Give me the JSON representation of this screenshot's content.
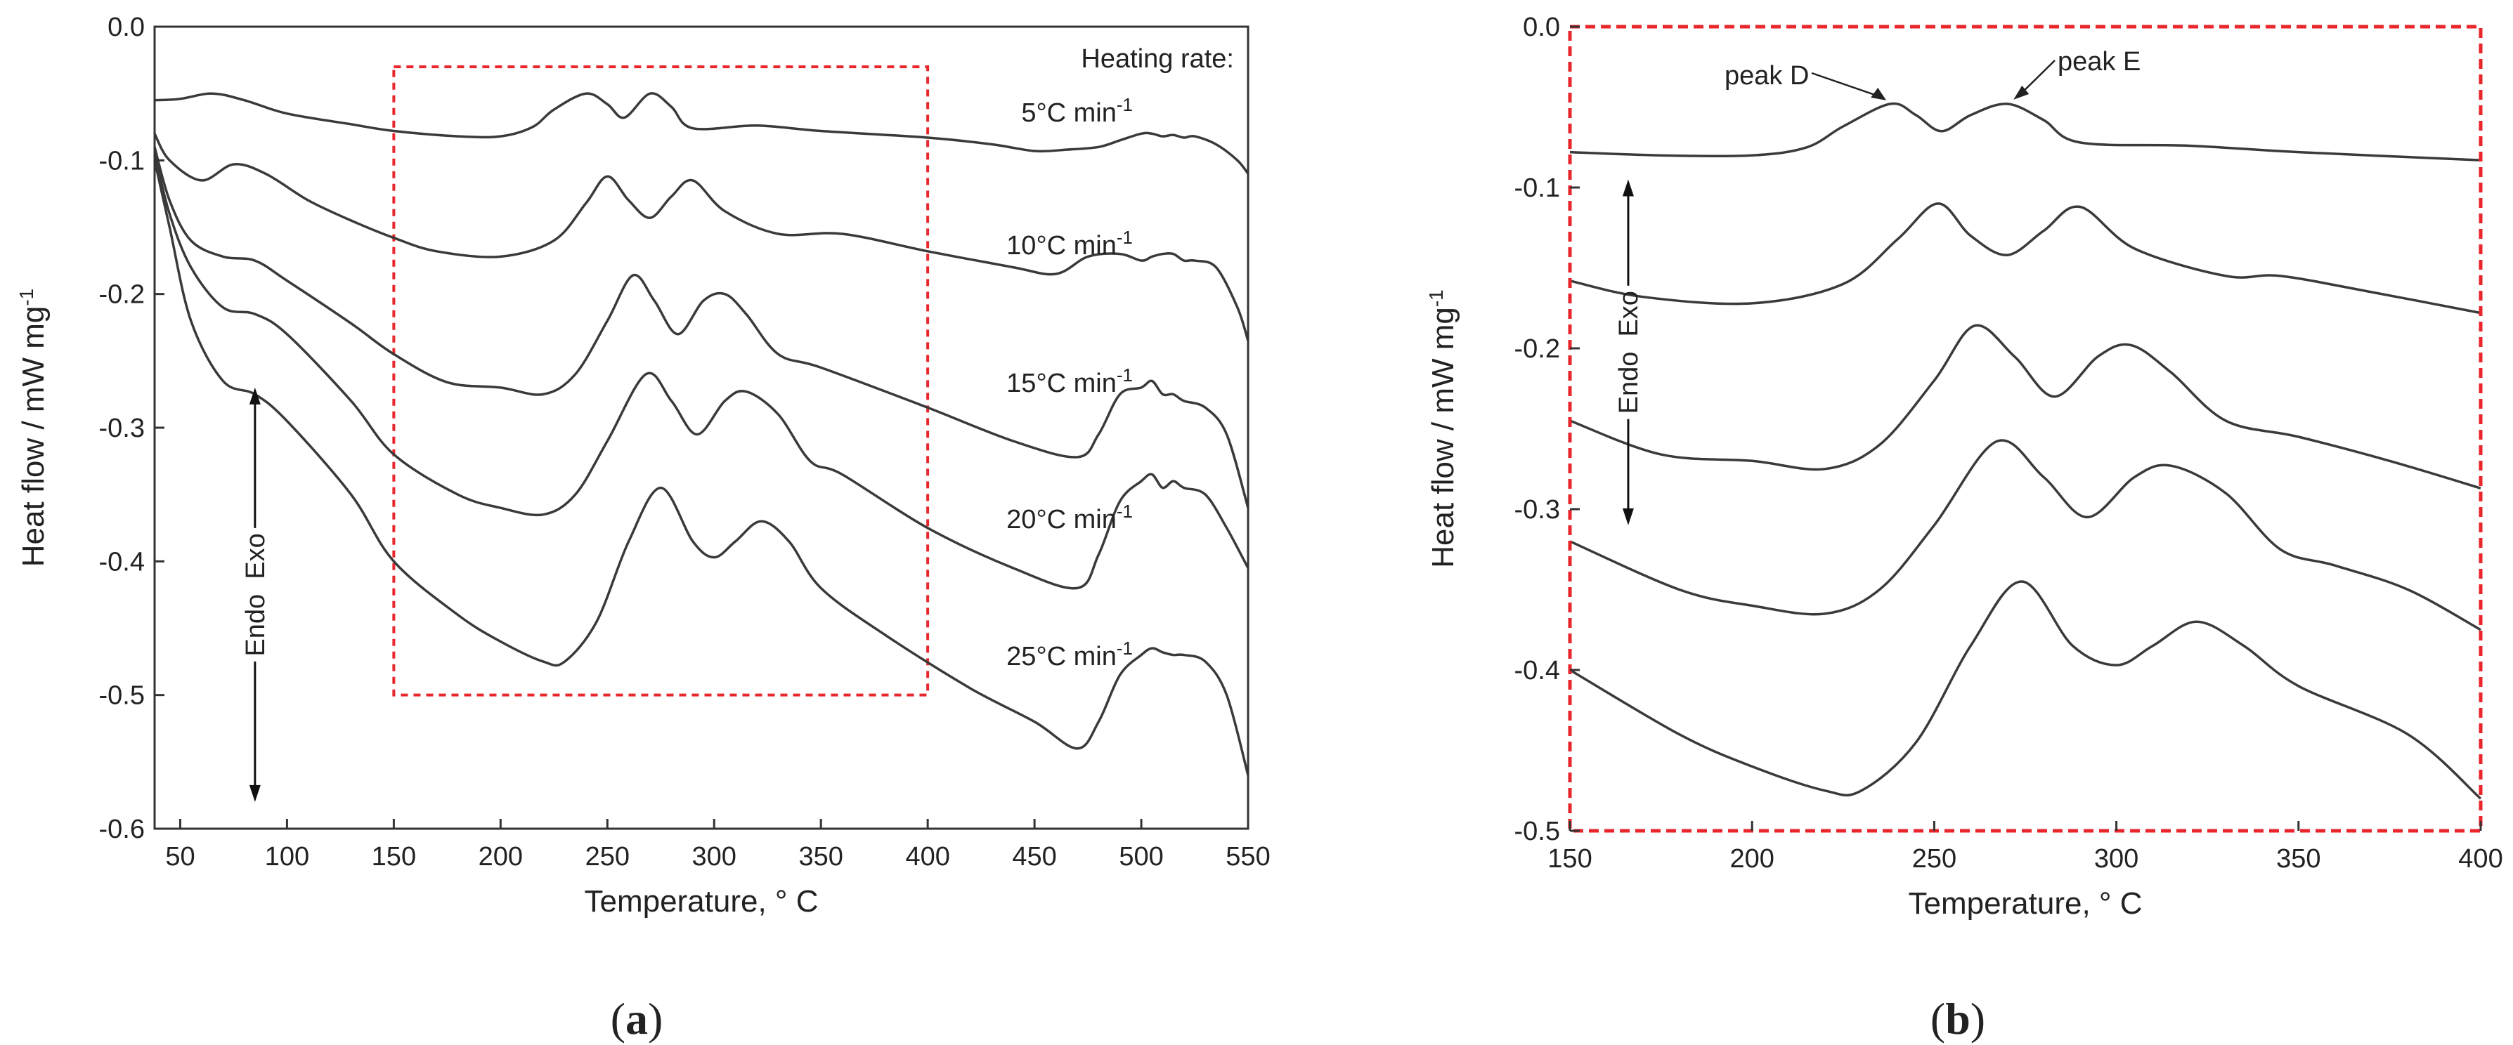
{
  "figure": {
    "caption_a": "(a)",
    "caption_a_parts": [
      "(",
      "a",
      ")"
    ],
    "caption_b": "(b)",
    "caption_b_parts": [
      "(",
      "b",
      ")"
    ]
  },
  "chart_data": [
    {
      "id": "a",
      "type": "line",
      "title": "",
      "xlabel": "Temperature, ° C",
      "ylabel": "Heat flow / mW mg-1",
      "xlim": [
        38,
        550
      ],
      "ylim": [
        -0.6,
        0.0
      ],
      "xticks": [
        50,
        100,
        150,
        200,
        250,
        300,
        350,
        400,
        450,
        500,
        550
      ],
      "yticks": [
        0.0,
        -0.1,
        -0.2,
        -0.3,
        -0.4,
        -0.5,
        -0.6
      ],
      "ytick_labels": [
        "0.0",
        "-0.1",
        "-0.2",
        "-0.3",
        "-0.4",
        "-0.5",
        "-0.6"
      ],
      "grid": false,
      "legend_title": "Heating rate:",
      "series": [
        {
          "name": "5°C min-1",
          "label_main": "5°C min",
          "label_sup": "-1",
          "x": [
            38,
            50,
            65,
            80,
            100,
            130,
            150,
            180,
            200,
            215,
            225,
            240,
            250,
            258,
            270,
            280,
            290,
            320,
            350,
            400,
            430,
            450,
            465,
            480,
            490,
            500,
            505,
            510,
            515,
            520,
            525,
            535,
            545,
            550
          ],
          "y": [
            -0.055,
            -0.054,
            -0.05,
            -0.055,
            -0.065,
            -0.073,
            -0.078,
            -0.082,
            -0.082,
            -0.075,
            -0.062,
            -0.05,
            -0.058,
            -0.068,
            -0.05,
            -0.06,
            -0.076,
            -0.074,
            -0.078,
            -0.083,
            -0.088,
            -0.093,
            -0.092,
            -0.09,
            -0.085,
            -0.08,
            -0.08,
            -0.082,
            -0.081,
            -0.083,
            -0.082,
            -0.088,
            -0.1,
            -0.11
          ]
        },
        {
          "name": "10°C min-1",
          "label_main": "10°C min",
          "label_sup": "-1",
          "x": [
            38,
            45,
            60,
            75,
            90,
            110,
            130,
            150,
            170,
            200,
            225,
            240,
            250,
            260,
            270,
            280,
            290,
            305,
            330,
            360,
            400,
            440,
            460,
            475,
            490,
            500,
            505,
            510,
            515,
            520,
            525,
            535,
            545,
            550
          ],
          "y": [
            -0.08,
            -0.1,
            -0.115,
            -0.103,
            -0.11,
            -0.13,
            -0.145,
            -0.158,
            -0.168,
            -0.172,
            -0.16,
            -0.132,
            -0.112,
            -0.13,
            -0.143,
            -0.127,
            -0.115,
            -0.138,
            -0.155,
            -0.155,
            -0.168,
            -0.18,
            -0.185,
            -0.172,
            -0.17,
            -0.175,
            -0.172,
            -0.17,
            -0.17,
            -0.175,
            -0.175,
            -0.18,
            -0.21,
            -0.235
          ]
        },
        {
          "name": "15°C min-1",
          "label_main": "15°C min",
          "label_sup": "-1",
          "x": [
            38,
            45,
            55,
            70,
            85,
            100,
            130,
            150,
            175,
            200,
            220,
            235,
            250,
            262,
            272,
            283,
            295,
            305,
            315,
            330,
            350,
            400,
            440,
            470,
            480,
            490,
            500,
            505,
            510,
            515,
            520,
            530,
            540,
            550
          ],
          "y": [
            -0.09,
            -0.13,
            -0.16,
            -0.172,
            -0.175,
            -0.19,
            -0.222,
            -0.245,
            -0.266,
            -0.27,
            -0.275,
            -0.26,
            -0.22,
            -0.186,
            -0.205,
            -0.23,
            -0.205,
            -0.2,
            -0.215,
            -0.245,
            -0.255,
            -0.285,
            -0.31,
            -0.322,
            -0.305,
            -0.275,
            -0.27,
            -0.265,
            -0.275,
            -0.275,
            -0.28,
            -0.285,
            -0.305,
            -0.36
          ]
        },
        {
          "name": "20°C min-1",
          "label_main": "20°C min",
          "label_sup": "-1",
          "x": [
            38,
            45,
            55,
            70,
            85,
            100,
            130,
            150,
            180,
            200,
            220,
            235,
            250,
            268,
            280,
            292,
            305,
            315,
            330,
            345,
            360,
            400,
            440,
            470,
            480,
            490,
            500,
            505,
            510,
            515,
            520,
            530,
            540,
            550
          ],
          "y": [
            -0.095,
            -0.14,
            -0.18,
            -0.21,
            -0.215,
            -0.23,
            -0.28,
            -0.32,
            -0.35,
            -0.36,
            -0.365,
            -0.35,
            -0.31,
            -0.26,
            -0.28,
            -0.305,
            -0.28,
            -0.273,
            -0.29,
            -0.325,
            -0.335,
            -0.375,
            -0.405,
            -0.42,
            -0.395,
            -0.355,
            -0.34,
            -0.335,
            -0.345,
            -0.34,
            -0.345,
            -0.35,
            -0.375,
            -0.405
          ]
        },
        {
          "name": "25°C min-1",
          "label_main": "25°C min",
          "label_sup": "-1",
          "x": [
            38,
            45,
            55,
            70,
            85,
            100,
            130,
            150,
            180,
            200,
            220,
            230,
            245,
            260,
            275,
            290,
            300,
            310,
            322,
            335,
            350,
            380,
            420,
            450,
            470,
            480,
            490,
            500,
            505,
            510,
            515,
            520,
            530,
            540,
            550
          ],
          "y": [
            -0.1,
            -0.15,
            -0.22,
            -0.265,
            -0.275,
            -0.295,
            -0.35,
            -0.4,
            -0.44,
            -0.46,
            -0.475,
            -0.475,
            -0.445,
            -0.385,
            -0.345,
            -0.385,
            -0.397,
            -0.385,
            -0.37,
            -0.385,
            -0.42,
            -0.455,
            -0.495,
            -0.52,
            -0.54,
            -0.52,
            -0.485,
            -0.47,
            -0.465,
            -0.468,
            -0.47,
            -0.47,
            -0.475,
            -0.5,
            -0.56
          ]
        }
      ],
      "annotations": {
        "endo_exo_text": "Endo  Exo",
        "arrow_x_data": 85,
        "arrow_y_top": -0.27,
        "arrow_y_bottom": -0.58,
        "zoom_box": {
          "x0": 150,
          "x1": 400,
          "y0": -0.03,
          "y1": -0.5
        }
      }
    },
    {
      "id": "b",
      "type": "line",
      "title": "",
      "xlabel": "Temperature, ° C",
      "ylabel": "Heat flow / mW mg-1",
      "xlim": [
        150,
        400
      ],
      "ylim": [
        -0.5,
        0.0
      ],
      "xticks": [
        150,
        200,
        250,
        300,
        350,
        400
      ],
      "yticks": [
        0.0,
        -0.1,
        -0.2,
        -0.3,
        -0.4,
        -0.5
      ],
      "ytick_labels": [
        "0.0",
        "-0.1",
        "-0.2",
        "-0.3",
        "-0.4",
        "-0.5"
      ],
      "grid": false,
      "series": [
        {
          "name": "5°C min-1",
          "x": [
            150,
            175,
            200,
            215,
            225,
            238,
            245,
            252,
            260,
            270,
            280,
            290,
            320,
            350,
            400
          ],
          "y": [
            -0.078,
            -0.08,
            -0.08,
            -0.075,
            -0.062,
            -0.048,
            -0.055,
            -0.065,
            -0.055,
            -0.048,
            -0.058,
            -0.072,
            -0.074,
            -0.078,
            -0.083
          ]
        },
        {
          "name": "10°C min-1",
          "x": [
            150,
            170,
            200,
            225,
            240,
            251,
            260,
            270,
            280,
            290,
            305,
            330,
            345,
            370,
            400
          ],
          "y": [
            -0.158,
            -0.168,
            -0.172,
            -0.16,
            -0.132,
            -0.11,
            -0.13,
            -0.142,
            -0.127,
            -0.112,
            -0.138,
            -0.155,
            -0.155,
            -0.165,
            -0.178
          ]
        },
        {
          "name": "15°C min-1",
          "x": [
            150,
            175,
            200,
            220,
            235,
            250,
            261,
            272,
            283,
            295,
            304,
            315,
            330,
            350,
            375,
            400
          ],
          "y": [
            -0.245,
            -0.266,
            -0.27,
            -0.275,
            -0.26,
            -0.22,
            -0.186,
            -0.205,
            -0.23,
            -0.205,
            -0.198,
            -0.215,
            -0.245,
            -0.255,
            -0.27,
            -0.287
          ]
        },
        {
          "name": "20°C min-1",
          "x": [
            150,
            180,
            200,
            220,
            235,
            250,
            267,
            280,
            292,
            305,
            315,
            330,
            345,
            360,
            380,
            400
          ],
          "y": [
            -0.32,
            -0.35,
            -0.36,
            -0.365,
            -0.35,
            -0.31,
            -0.258,
            -0.28,
            -0.305,
            -0.28,
            -0.273,
            -0.29,
            -0.325,
            -0.335,
            -0.35,
            -0.375
          ]
        },
        {
          "name": "25°C min-1",
          "x": [
            150,
            180,
            200,
            220,
            230,
            245,
            260,
            274,
            288,
            300,
            310,
            322,
            335,
            350,
            380,
            400
          ],
          "y": [
            -0.4,
            -0.44,
            -0.46,
            -0.475,
            -0.475,
            -0.445,
            -0.385,
            -0.345,
            -0.385,
            -0.397,
            -0.385,
            -0.37,
            -0.385,
            -0.41,
            -0.44,
            -0.48
          ]
        }
      ],
      "annotations": {
        "peak_d_label": "peak D",
        "peak_d_x": 238,
        "peak_d_y": -0.048,
        "peak_e_label": "peak E",
        "peak_e_x": 271,
        "peak_e_y": -0.048,
        "endo_exo_text": "Endo  Exo",
        "arrow_x_data": 166,
        "arrow_y_top": -0.095,
        "arrow_y_bottom": -0.31
      }
    }
  ]
}
